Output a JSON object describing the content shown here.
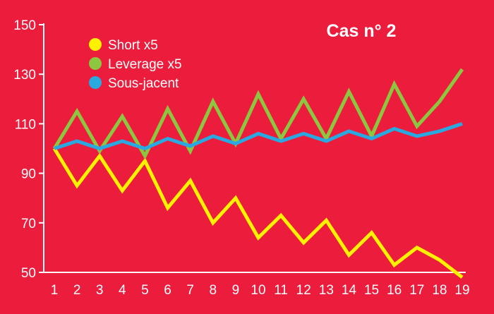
{
  "chart_data": {
    "type": "line",
    "title": "Cas n° 2",
    "xlabel": "",
    "ylabel": "",
    "x": [
      1,
      2,
      3,
      4,
      5,
      6,
      7,
      8,
      9,
      10,
      11,
      12,
      13,
      14,
      15,
      16,
      17,
      18,
      19
    ],
    "xlim": [
      1,
      19
    ],
    "ylim": [
      50,
      150
    ],
    "yticks": [
      50,
      70,
      90,
      110,
      130,
      150
    ],
    "grid": false,
    "legend_position": "top-left",
    "series": [
      {
        "name": "Short x5",
        "color": "#fff200",
        "values": [
          100,
          85,
          97,
          83,
          95,
          76,
          87,
          70,
          80,
          64,
          73,
          62,
          71,
          57,
          66,
          53,
          60,
          55,
          48
        ]
      },
      {
        "name": "Leverage x5",
        "color": "#8dc63f",
        "values": [
          100,
          115,
          99,
          113,
          97,
          116,
          99,
          119,
          102,
          122,
          104,
          120,
          104,
          123,
          105,
          126,
          109,
          119,
          132
        ]
      },
      {
        "name": "Sous-jacent",
        "color": "#2aa8e0",
        "values": [
          100,
          103,
          100,
          103,
          100,
          104,
          101,
          105,
          102,
          106,
          103,
          106,
          103,
          107,
          104,
          108,
          105,
          107,
          110
        ]
      }
    ]
  }
}
